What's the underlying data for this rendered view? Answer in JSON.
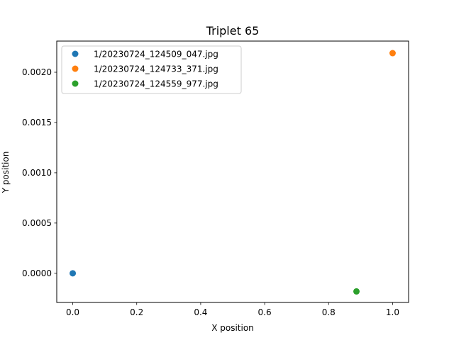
{
  "chart_data": {
    "type": "scatter",
    "title": "Triplet 65",
    "xlabel": "X position",
    "ylabel": "Y position",
    "xlim": [
      -0.05,
      1.05
    ],
    "ylim": [
      -0.00029,
      0.00231
    ],
    "xticks": [
      0.0,
      0.2,
      0.4,
      0.6,
      0.8,
      1.0
    ],
    "xtick_labels": [
      "0.0",
      "0.2",
      "0.4",
      "0.6",
      "0.8",
      "1.0"
    ],
    "yticks": [
      0.0,
      0.0005,
      0.001,
      0.0015,
      0.002
    ],
    "ytick_labels": [
      "0.0000",
      "0.0005",
      "0.0010",
      "0.0015",
      "0.0020"
    ],
    "grid": false,
    "legend_position": "top-left",
    "series": [
      {
        "name": "1/20230724_124509_047.jpg",
        "color": "#1f77b4",
        "x": [
          0.0
        ],
        "y": [
          0.0
        ]
      },
      {
        "name": "1/20230724_124733_371.jpg",
        "color": "#ff7f0e",
        "x": [
          1.0
        ],
        "y": [
          0.00219
        ]
      },
      {
        "name": "1/20230724_124559_977.jpg",
        "color": "#2ca02c",
        "x": [
          0.887
        ],
        "y": [
          -0.00018
        ]
      }
    ]
  }
}
